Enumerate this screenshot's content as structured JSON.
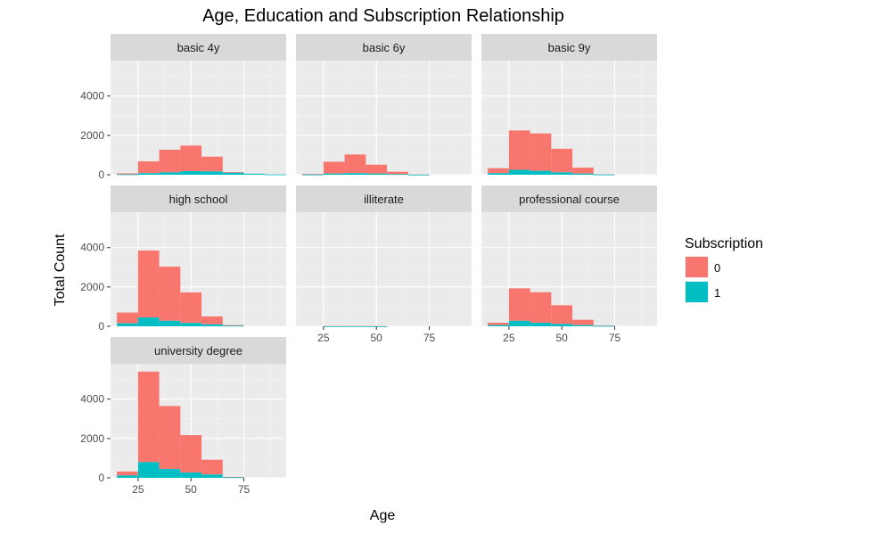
{
  "chart_data": {
    "type": "bar",
    "subtype": "faceted stacked histogram",
    "title": "Age, Education and Subscription Relationship",
    "xlabel": "Age",
    "ylabel": "Total Count",
    "xlim": [
      12,
      95
    ],
    "ylim": [
      0,
      5800
    ],
    "x_ticks": [
      25,
      50,
      75
    ],
    "y_ticks": [
      0,
      2000,
      4000
    ],
    "grid": true,
    "legend": {
      "title": "Subscription",
      "placement": "right",
      "entries": [
        {
          "label": "0",
          "color": "#F8766D"
        },
        {
          "label": "1",
          "color": "#00BFC4"
        }
      ]
    },
    "bins": [
      [
        15,
        25
      ],
      [
        25,
        35
      ],
      [
        35,
        45
      ],
      [
        45,
        55
      ],
      [
        55,
        65
      ],
      [
        65,
        75
      ],
      [
        75,
        85
      ],
      [
        85,
        95
      ]
    ],
    "facets": [
      {
        "name": "basic 4y",
        "subscribed_0": [
          50,
          600,
          1150,
          1300,
          750,
          30,
          0,
          0
        ],
        "subscribed_1": [
          20,
          80,
          120,
          180,
          170,
          100,
          50,
          15
        ]
      },
      {
        "name": "basic 6y",
        "subscribed_0": [
          30,
          600,
          950,
          450,
          120,
          5,
          0,
          0
        ],
        "subscribed_1": [
          10,
          60,
          80,
          60,
          30,
          5,
          0,
          0
        ]
      },
      {
        "name": "basic 9y",
        "subscribed_0": [
          250,
          2000,
          1900,
          1200,
          300,
          5,
          0,
          0
        ],
        "subscribed_1": [
          80,
          250,
          200,
          120,
          60,
          10,
          0,
          0
        ]
      },
      {
        "name": "high school",
        "subscribed_0": [
          550,
          3400,
          2750,
          1550,
          400,
          30,
          0,
          0
        ],
        "subscribed_1": [
          150,
          450,
          280,
          170,
          100,
          30,
          0,
          0
        ]
      },
      {
        "name": "illiterate",
        "subscribed_0": [
          0,
          8,
          10,
          5,
          0,
          0,
          0,
          0
        ],
        "subscribed_1": [
          0,
          2,
          3,
          2,
          0,
          0,
          0,
          0
        ]
      },
      {
        "name": "professional course",
        "subscribed_0": [
          120,
          1650,
          1550,
          950,
          270,
          15,
          0,
          0
        ],
        "subscribed_1": [
          60,
          280,
          180,
          120,
          60,
          20,
          0,
          0
        ]
      },
      {
        "name": "university degree",
        "subscribed_0": [
          200,
          4600,
          3200,
          1900,
          750,
          20,
          0,
          0
        ],
        "subscribed_1": [
          120,
          800,
          450,
          270,
          170,
          30,
          0,
          0
        ]
      }
    ]
  }
}
